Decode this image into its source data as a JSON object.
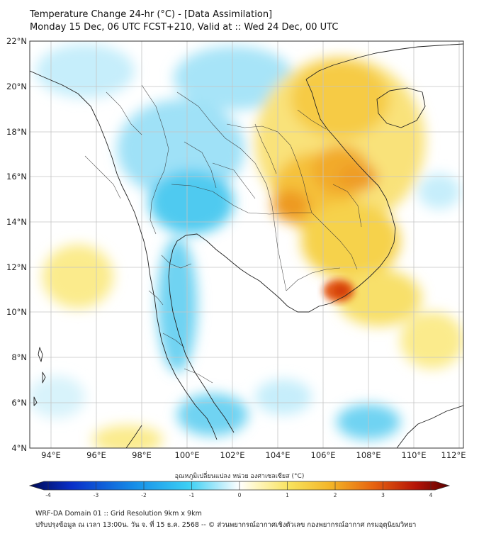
{
  "header": {
    "title_line1": "Temperature Change 24-hr (°C) - [Data Assimilation]",
    "title_line2": "Monday 15 Dec, 06 UTC FCST+210, Valid at :: Wed 24 Dec, 00 UTC"
  },
  "map": {
    "lat_labels": [
      "22°N",
      "20°N",
      "18°N",
      "16°N",
      "14°N",
      "12°N",
      "10°N",
      "8°N",
      "6°N",
      "4°N"
    ],
    "lon_labels": [
      "94°E",
      "96°E",
      "98°E",
      "100°E",
      "102°E",
      "104°E",
      "106°E",
      "108°E",
      "110°E",
      "112°E"
    ],
    "lat_range": [
      4,
      22
    ],
    "lon_range": [
      94,
      112
    ]
  },
  "colorbar": {
    "label": "อุณหภูมิเปลี่ยนแปลง หน่วย องศาเซลเซียส (°C)",
    "ticks": [
      "-4",
      "-3",
      "-2",
      "-1",
      "0",
      "1",
      "2",
      "3",
      "4"
    ],
    "range": [
      -4,
      4
    ]
  },
  "footer": {
    "line1": "WRF-DA Domain 01 :: Grid Resolution 9km x 9km",
    "line2": "ปรับปรุงข้อมูล ณ เวลา 13:00น. วัน จ. ที่ 15 ธ.ค. 2568 -- © ส่วนพยากรณ์อากาศเชิงตัวเลข กองพยากรณ์อากาศ กรมอุตุนิยมวิทยา"
  },
  "colors": {
    "cold_deep": "#001a7a",
    "cold": "#2bc6ee",
    "neutral": "#ffffff",
    "warm": "#f8e25c",
    "hot": "#e64a10",
    "hot_deep": "#6e0000",
    "coast": "#222222",
    "grid": "#b8b8b8"
  }
}
